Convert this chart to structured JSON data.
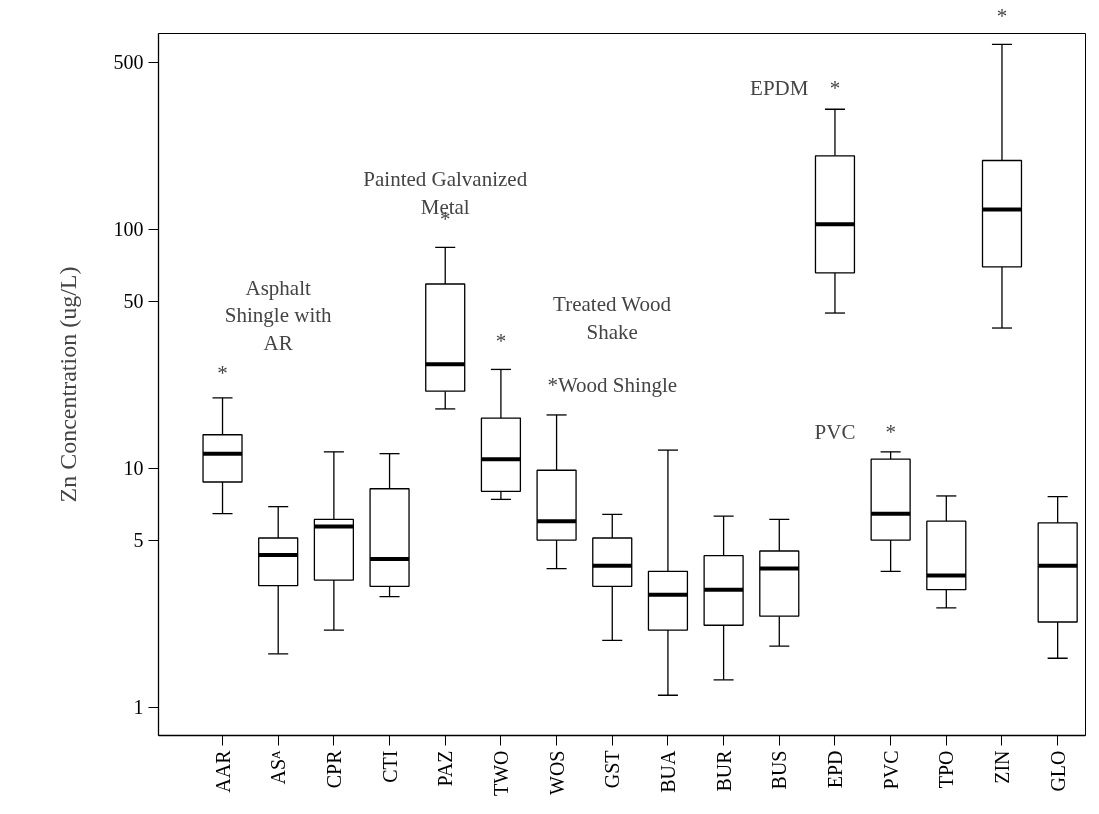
{
  "chart_data": {
    "type": "box",
    "ylabel": "Zn Concentration (ug/L)",
    "log": true,
    "categories": [
      "AAR",
      "ASᴬ",
      "CPR",
      "CTI",
      "PAZ",
      "TWO",
      "WOS",
      "GST",
      "BUA",
      "BUR",
      "BUS",
      "EPD",
      "PVC",
      "TPO",
      "ZIN",
      "GLO"
    ],
    "boxes": [
      {
        "low": 6.45,
        "q1": 8.75,
        "median": 11.5,
        "q3": 13.8,
        "high": 19.7
      },
      {
        "low": 1.67,
        "q1": 3.22,
        "median": 4.33,
        "q3": 5.1,
        "high": 6.9
      },
      {
        "low": 2.1,
        "q1": 3.4,
        "median": 5.7,
        "q3": 6.1,
        "high": 11.7
      },
      {
        "low": 2.9,
        "q1": 3.2,
        "median": 4.17,
        "q3": 8.2,
        "high": 11.5
      },
      {
        "low": 17.7,
        "q1": 21,
        "median": 27.2,
        "q3": 59,
        "high": 84
      },
      {
        "low": 7.4,
        "q1": 8.0,
        "median": 10.9,
        "q3": 16.2,
        "high": 25.9
      },
      {
        "low": 3.8,
        "q1": 5.0,
        "median": 6.0,
        "q3": 9.8,
        "high": 16.7
      },
      {
        "low": 1.9,
        "q1": 3.2,
        "median": 3.9,
        "q3": 5.1,
        "high": 6.4
      },
      {
        "low": 1.12,
        "q1": 2.1,
        "median": 2.95,
        "q3": 3.7,
        "high": 11.9
      },
      {
        "low": 1.3,
        "q1": 2.2,
        "median": 3.1,
        "q3": 4.3,
        "high": 6.3
      },
      {
        "low": 1.8,
        "q1": 2.4,
        "median": 3.8,
        "q3": 4.5,
        "high": 6.1
      },
      {
        "low": 44.6,
        "q1": 65.7,
        "median": 105,
        "q3": 203,
        "high": 318
      },
      {
        "low": 3.7,
        "q1": 5.0,
        "median": 6.45,
        "q3": 10.9,
        "high": 11.7
      },
      {
        "low": 2.6,
        "q1": 3.1,
        "median": 3.55,
        "q3": 6.0,
        "high": 7.65
      },
      {
        "low": 38.6,
        "q1": 69.6,
        "median": 121,
        "q3": 194,
        "high": 594
      },
      {
        "low": 1.6,
        "q1": 2.27,
        "median": 3.9,
        "q3": 5.9,
        "high": 7.6
      }
    ],
    "ylim": [
      0.76,
      660
    ],
    "yticks": [
      1,
      5,
      10,
      50,
      100,
      500
    ],
    "annotations": [
      "Asphalt\nShingle with\nAR",
      "*",
      "Painted Galvanized\nMetal",
      "*",
      "Treated Wood\nShake",
      "*",
      "*Wood Shingle",
      "EPDM",
      "*",
      "PVC",
      "*",
      "*"
    ]
  }
}
